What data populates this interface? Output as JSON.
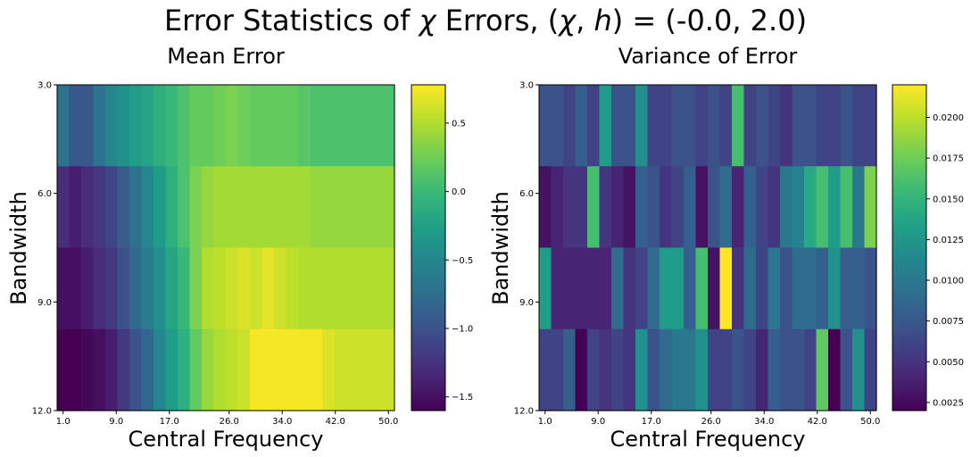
{
  "figure": {
    "suptitle_prefix": "Error Statistics of ",
    "suptitle_chi": "χ",
    "suptitle_mid": " Errors, (",
    "suptitle_chi2": "χ",
    "suptitle_comma": ", ",
    "suptitle_h": "h",
    "suptitle_suffix": ") = (-0.0, 2.0)"
  },
  "chart_data": [
    {
      "type": "heatmap",
      "title": "Mean Error",
      "xlabel": "Central Frequency",
      "ylabel": "Bandwidth",
      "colormap": "viridis",
      "x_tick_labels": [
        "1.0",
        "9.0",
        "17.0",
        "26.0",
        "34.0",
        "42.0",
        "50.0"
      ],
      "y_tick_labels": [
        "3.0",
        "6.0",
        "9.0",
        "12.0"
      ],
      "x_range": [
        1,
        50
      ],
      "y_range": [
        3,
        12
      ],
      "color_range": [
        -1.6,
        0.78
      ],
      "colorbar_ticks": [
        0.5,
        0.0,
        -0.5,
        -1.0,
        -1.5
      ],
      "colorbar_tick_labels": [
        "0.5",
        "0.0",
        "−0.5",
        "−1.0",
        "−1.5"
      ],
      "values": [
        [
          -0.7,
          -0.95,
          -0.95,
          -0.7,
          -0.5,
          -0.4,
          -0.3,
          -0.2,
          -0.1,
          0.0,
          0.1,
          0.2,
          0.2,
          0.25,
          0.3,
          0.25,
          0.2,
          0.2,
          0.2,
          0.2,
          0.15,
          0.1,
          0.1,
          0.1,
          0.1,
          0.1,
          0.1,
          0.1
        ],
        [
          -1.3,
          -1.4,
          -1.3,
          -1.2,
          -1.1,
          -0.9,
          -0.7,
          -0.5,
          -0.3,
          -0.1,
          0.1,
          0.3,
          0.4,
          0.45,
          0.45,
          0.45,
          0.45,
          0.45,
          0.45,
          0.45,
          0.45,
          0.4,
          0.4,
          0.4,
          0.4,
          0.4,
          0.4,
          0.4
        ],
        [
          -1.5,
          -1.5,
          -1.4,
          -1.3,
          -1.2,
          -1.0,
          -0.8,
          -0.6,
          -0.4,
          -0.2,
          0.0,
          0.3,
          0.5,
          0.55,
          0.6,
          0.65,
          0.6,
          0.7,
          0.6,
          0.55,
          0.5,
          0.5,
          0.5,
          0.5,
          0.5,
          0.5,
          0.5,
          0.5
        ],
        [
          -1.6,
          -1.6,
          -1.55,
          -1.5,
          -1.4,
          -1.2,
          -1.0,
          -0.8,
          -0.5,
          -0.3,
          -0.1,
          0.2,
          0.4,
          0.5,
          0.55,
          0.6,
          0.75,
          0.75,
          0.75,
          0.75,
          0.75,
          0.75,
          0.65,
          0.6,
          0.6,
          0.6,
          0.6,
          0.6
        ]
      ]
    },
    {
      "type": "heatmap",
      "title": "Variance of Error",
      "xlabel": "Central Frequency",
      "ylabel": "Bandwidth",
      "colormap": "viridis",
      "x_tick_labels": [
        "1.0",
        "9.0",
        "17.0",
        "26.0",
        "34.0",
        "42.0",
        "50.0"
      ],
      "y_tick_labels": [
        "3.0",
        "6.0",
        "9.0",
        "12.0"
      ],
      "x_range": [
        1,
        50
      ],
      "y_range": [
        3,
        12
      ],
      "color_range": [
        0.002,
        0.022
      ],
      "colorbar_ticks": [
        0.02,
        0.0175,
        0.015,
        0.0125,
        0.01,
        0.0075,
        0.005,
        0.0025
      ],
      "colorbar_tick_labels": [
        "0.0200",
        "0.0175",
        "0.0150",
        "0.0125",
        "0.0100",
        "0.0075",
        "0.0050",
        "0.0025"
      ],
      "values": [
        [
          0.007,
          0.007,
          0.006,
          0.008,
          0.006,
          0.013,
          0.007,
          0.007,
          0.012,
          0.006,
          0.006,
          0.007,
          0.007,
          0.006,
          0.007,
          0.006,
          0.016,
          0.006,
          0.007,
          0.006,
          0.005,
          0.007,
          0.007,
          0.006,
          0.006,
          0.007,
          0.006,
          0.006
        ],
        [
          0.003,
          0.004,
          0.005,
          0.005,
          0.016,
          0.005,
          0.004,
          0.003,
          0.008,
          0.007,
          0.005,
          0.006,
          0.008,
          0.003,
          0.007,
          0.009,
          0.004,
          0.008,
          0.006,
          0.005,
          0.01,
          0.011,
          0.014,
          0.016,
          0.013,
          0.016,
          0.01,
          0.018
        ],
        [
          0.013,
          0.004,
          0.004,
          0.004,
          0.004,
          0.004,
          0.009,
          0.005,
          0.006,
          0.009,
          0.013,
          0.013,
          0.008,
          0.016,
          0.003,
          0.022,
          0.005,
          0.009,
          0.006,
          0.01,
          0.007,
          0.009,
          0.009,
          0.008,
          0.012,
          0.008,
          0.008,
          0.007
        ],
        [
          0.006,
          0.006,
          0.008,
          0.002,
          0.006,
          0.005,
          0.006,
          0.005,
          0.012,
          0.007,
          0.009,
          0.01,
          0.01,
          0.012,
          0.006,
          0.006,
          0.007,
          0.006,
          0.004,
          0.008,
          0.007,
          0.007,
          0.006,
          0.017,
          0.002,
          0.007,
          0.012,
          0.006
        ]
      ]
    }
  ]
}
